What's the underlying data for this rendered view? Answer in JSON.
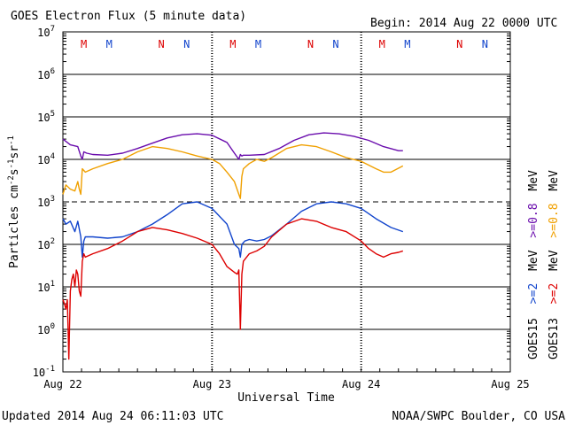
{
  "header": {
    "title": "GOES Electron Flux (5 minute data)",
    "begin": "Begin: 2014 Aug 22 0000 UTC"
  },
  "footer": {
    "updated": "Updated 2014 Aug 24 06:11:03 UTC",
    "credit": "NOAA/SWPC Boulder, CO USA"
  },
  "chart_data": {
    "type": "line",
    "title": "GOES Electron Flux (5 minute data)",
    "xlabel": "Universal Time",
    "ylabel": "Particles cm-2s-1sr-1",
    "y_scale": "log",
    "ylim": [
      0.1,
      10000000
    ],
    "xlim": [
      0,
      3
    ],
    "x_ticks": [
      "Aug 22",
      "Aug 23",
      "Aug 24",
      "Aug 25"
    ],
    "y_ticks": [
      {
        "base": "10",
        "exp": "-1"
      },
      {
        "base": "10",
        "exp": "0"
      },
      {
        "base": "10",
        "exp": "1"
      },
      {
        "base": "10",
        "exp": "2"
      },
      {
        "base": "10",
        "exp": "3"
      },
      {
        "base": "10",
        "exp": "4"
      },
      {
        "base": "10",
        "exp": "5"
      },
      {
        "base": "10",
        "exp": "6"
      },
      {
        "base": "10",
        "exp": "7"
      }
    ],
    "markers": [
      {
        "label": "M",
        "color": "#dd0000",
        "day": 0.14
      },
      {
        "label": "M",
        "color": "#1144cc",
        "day": 0.31
      },
      {
        "label": "N",
        "color": "#dd0000",
        "day": 0.66
      },
      {
        "label": "N",
        "color": "#1144cc",
        "day": 0.83
      },
      {
        "label": "M",
        "color": "#dd0000",
        "day": 1.14
      },
      {
        "label": "M",
        "color": "#1144cc",
        "day": 1.31
      },
      {
        "label": "N",
        "color": "#dd0000",
        "day": 1.66
      },
      {
        "label": "N",
        "color": "#1144cc",
        "day": 1.83
      },
      {
        "label": "M",
        "color": "#dd0000",
        "day": 2.14
      },
      {
        "label": "M",
        "color": "#1144cc",
        "day": 2.31
      },
      {
        "label": "N",
        "color": "#dd0000",
        "day": 2.66
      },
      {
        "label": "N",
        "color": "#1144cc",
        "day": 2.83
      }
    ],
    "series": [
      {
        "name": "GOES15 >=0.8 MeV",
        "color": "#6a0dad",
        "x": [
          0,
          0.05,
          0.1,
          0.12,
          0.13,
          0.14,
          0.16,
          0.2,
          0.3,
          0.4,
          0.5,
          0.6,
          0.7,
          0.8,
          0.9,
          1.0,
          1.1,
          1.15,
          1.18,
          1.19,
          1.2,
          1.21,
          1.25,
          1.35,
          1.45,
          1.55,
          1.65,
          1.75,
          1.85,
          1.95,
          2.05,
          2.15,
          2.25,
          2.28
        ],
        "y": [
          30000,
          22000,
          20000,
          12000,
          10000,
          15000,
          14000,
          13000,
          12500,
          14000,
          18000,
          24000,
          32000,
          38000,
          40000,
          37000,
          25000,
          14000,
          10000,
          13000,
          12000,
          12500,
          12500,
          13000,
          18000,
          28000,
          38000,
          42000,
          40000,
          35000,
          28000,
          20000,
          16000,
          16000
        ]
      },
      {
        "name": "GOES13 >=0.8 MeV",
        "color": "#f0a000",
        "x": [
          0,
          0.02,
          0.05,
          0.08,
          0.1,
          0.11,
          0.12,
          0.13,
          0.15,
          0.2,
          0.3,
          0.4,
          0.5,
          0.6,
          0.7,
          0.8,
          0.9,
          1.0,
          1.05,
          1.1,
          1.15,
          1.18,
          1.19,
          1.2,
          1.21,
          1.25,
          1.3,
          1.35,
          1.4,
          1.5,
          1.6,
          1.7,
          1.8,
          1.9,
          2.0,
          2.1,
          2.15,
          2.2,
          2.28
        ],
        "y": [
          1500,
          2500,
          2000,
          1800,
          3000,
          2000,
          1500,
          6000,
          5000,
          6000,
          8000,
          10000,
          15000,
          20000,
          18000,
          15000,
          12000,
          10000,
          8000,
          5000,
          3000,
          1500,
          1200,
          4000,
          6000,
          8000,
          10000,
          9000,
          11000,
          18000,
          22000,
          20000,
          15000,
          11000,
          9000,
          6000,
          5000,
          5000,
          7000
        ]
      },
      {
        "name": "GOES15 >=2 MeV",
        "color": "#1144cc",
        "x": [
          0,
          0.02,
          0.05,
          0.08,
          0.1,
          0.12,
          0.13,
          0.14,
          0.15,
          0.2,
          0.3,
          0.4,
          0.5,
          0.6,
          0.7,
          0.8,
          0.9,
          1.0,
          1.1,
          1.15,
          1.18,
          1.19,
          1.2,
          1.22,
          1.25,
          1.3,
          1.35,
          1.4,
          1.5,
          1.6,
          1.7,
          1.8,
          1.9,
          2.0,
          2.1,
          2.2,
          2.28
        ],
        "y": [
          400,
          300,
          350,
          200,
          350,
          150,
          50,
          120,
          150,
          150,
          140,
          150,
          200,
          300,
          500,
          900,
          1000,
          700,
          300,
          100,
          80,
          50,
          100,
          120,
          130,
          120,
          130,
          160,
          300,
          600,
          900,
          1000,
          900,
          700,
          400,
          250,
          200
        ]
      },
      {
        "name": "GOES13 >=2 MeV",
        "color": "#dd0000",
        "x": [
          0,
          0.01,
          0.02,
          0.03,
          0.04,
          0.05,
          0.06,
          0.07,
          0.08,
          0.09,
          0.1,
          0.11,
          0.12,
          0.13,
          0.14,
          0.15,
          0.2,
          0.3,
          0.4,
          0.5,
          0.6,
          0.7,
          0.8,
          0.9,
          1.0,
          1.05,
          1.1,
          1.15,
          1.17,
          1.18,
          1.19,
          1.2,
          1.21,
          1.25,
          1.3,
          1.35,
          1.4,
          1.5,
          1.6,
          1.7,
          1.8,
          1.9,
          2.0,
          2.05,
          2.1,
          2.15,
          2.2,
          2.25,
          2.28
        ],
        "y": [
          5,
          4,
          3,
          5,
          0.2,
          8,
          15,
          20,
          10,
          25,
          20,
          8,
          6,
          40,
          60,
          50,
          60,
          80,
          120,
          200,
          250,
          220,
          180,
          140,
          100,
          60,
          30,
          22,
          20,
          25,
          1,
          20,
          40,
          60,
          70,
          90,
          150,
          300,
          400,
          350,
          250,
          200,
          120,
          80,
          60,
          50,
          60,
          65,
          70
        ]
      }
    ]
  },
  "side_labels": {
    "g15": "GOES15",
    "g13": "GOES13",
    "g15_low": ">=2",
    "g13_low": ">=2",
    "g15_high": ">=0.8",
    "g13_high": ">=0.8",
    "unit": "MeV"
  },
  "colors": {
    "g15_high": "#6a0dad",
    "g13_high": "#f0a000",
    "g15_low": "#1144cc",
    "g13_low": "#dd0000"
  }
}
